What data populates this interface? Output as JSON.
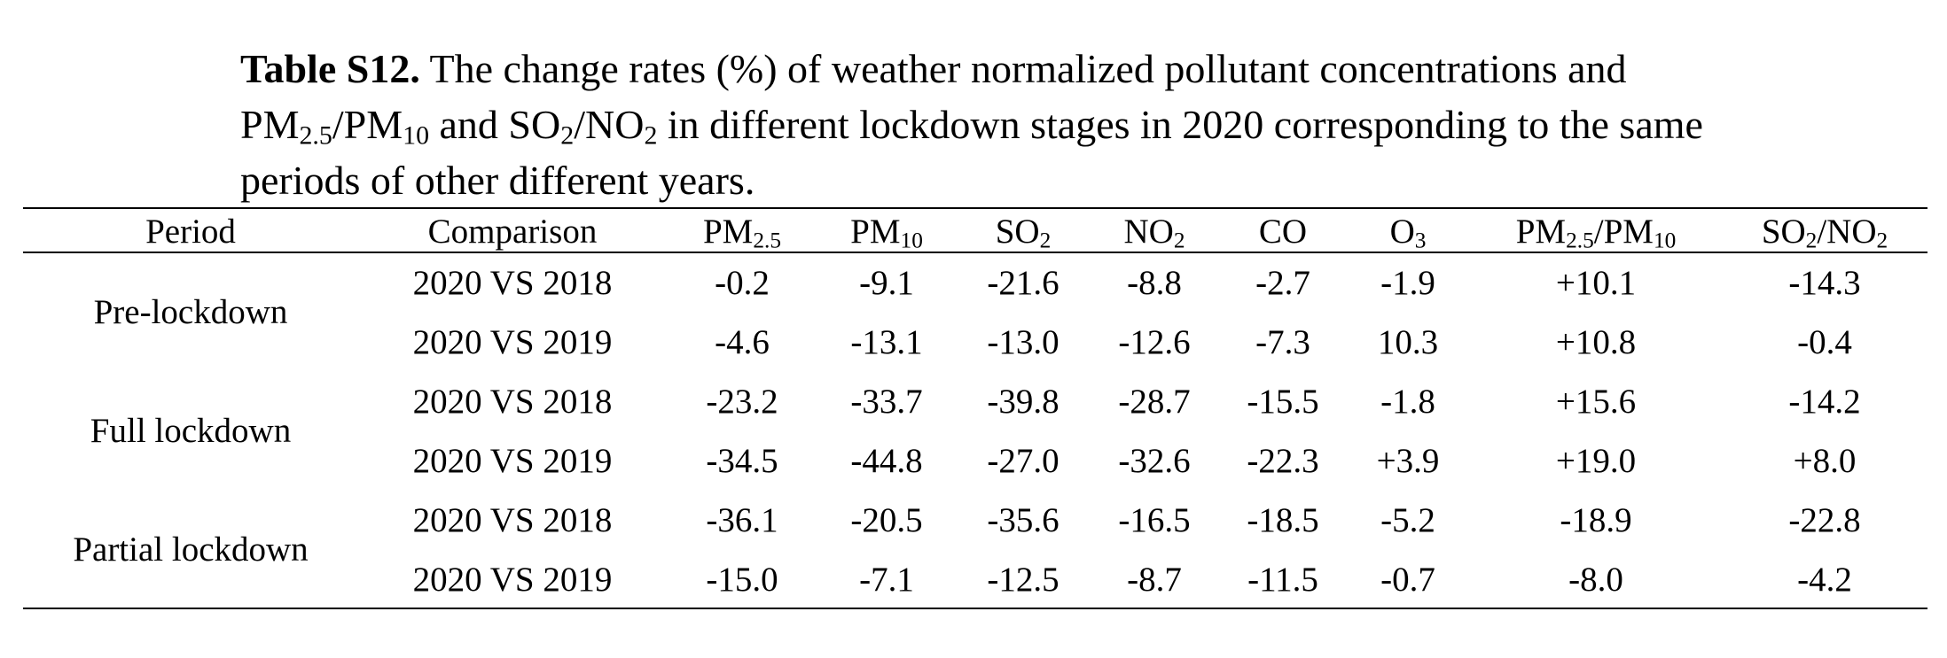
{
  "caption": {
    "label": "Table S12.",
    "text_1": " The change rates (%) of weather normalized pollutant concentrations and PM",
    "sub_1": "2.5",
    "text_2": "/PM",
    "sub_2": "10",
    "text_3": " and SO",
    "sub_3": "2",
    "text_4": "/NO",
    "sub_4": "2",
    "text_5": " in different lockdown stages in 2020 corresponding to the same periods of other different years."
  },
  "header": {
    "period": "Period",
    "comparison": "Comparison",
    "pm25": {
      "base": "PM",
      "sub": "2.5"
    },
    "pm10": {
      "base": "PM",
      "sub": "10"
    },
    "so2": {
      "base": "SO",
      "sub": "2"
    },
    "no2": {
      "base": "NO",
      "sub": "2"
    },
    "co": "CO",
    "o3": {
      "base": "O",
      "sub": "3"
    },
    "pm_ratio": {
      "base1": "PM",
      "sub1": "2.5",
      "mid": "/PM",
      "sub2": "10"
    },
    "so_ratio": {
      "base1": "SO",
      "sub1": "2",
      "mid": "/NO",
      "sub2": "2"
    }
  },
  "periods": [
    "Pre-lockdown",
    "Full lockdown",
    "Partial lockdown"
  ],
  "rows": [
    {
      "comparison": "2020 VS 2018",
      "pm25": "-0.2",
      "pm10": "-9.1",
      "so2": "-21.6",
      "no2": "-8.8",
      "co": "-2.7",
      "o3": "-1.9",
      "pm_ratio": "+10.1",
      "so_ratio": "-14.3"
    },
    {
      "comparison": "2020 VS 2019",
      "pm25": "-4.6",
      "pm10": "-13.1",
      "so2": "-13.0",
      "no2": "-12.6",
      "co": "-7.3",
      "o3": "10.3",
      "pm_ratio": "+10.8",
      "so_ratio": "-0.4"
    },
    {
      "comparison": "2020 VS 2018",
      "pm25": "-23.2",
      "pm10": "-33.7",
      "so2": "-39.8",
      "no2": "-28.7",
      "co": "-15.5",
      "o3": "-1.8",
      "pm_ratio": "+15.6",
      "so_ratio": "-14.2"
    },
    {
      "comparison": "2020 VS 2019",
      "pm25": "-34.5",
      "pm10": "-44.8",
      "so2": "-27.0",
      "no2": "-32.6",
      "co": "-22.3",
      "o3": "+3.9",
      "pm_ratio": "+19.0",
      "so_ratio": "+8.0"
    },
    {
      "comparison": "2020 VS 2018",
      "pm25": "-36.1",
      "pm10": "-20.5",
      "so2": "-35.6",
      "no2": "-16.5",
      "co": "-18.5",
      "o3": "-5.2",
      "pm_ratio": "-18.9",
      "so_ratio": "-22.8"
    },
    {
      "comparison": "2020 VS 2019",
      "pm25": "-15.0",
      "pm10": "-7.1",
      "so2": "-12.5",
      "no2": "-8.7",
      "co": "-11.5",
      "o3": "-0.7",
      "pm_ratio": "-8.0",
      "so_ratio": "-4.2"
    }
  ]
}
